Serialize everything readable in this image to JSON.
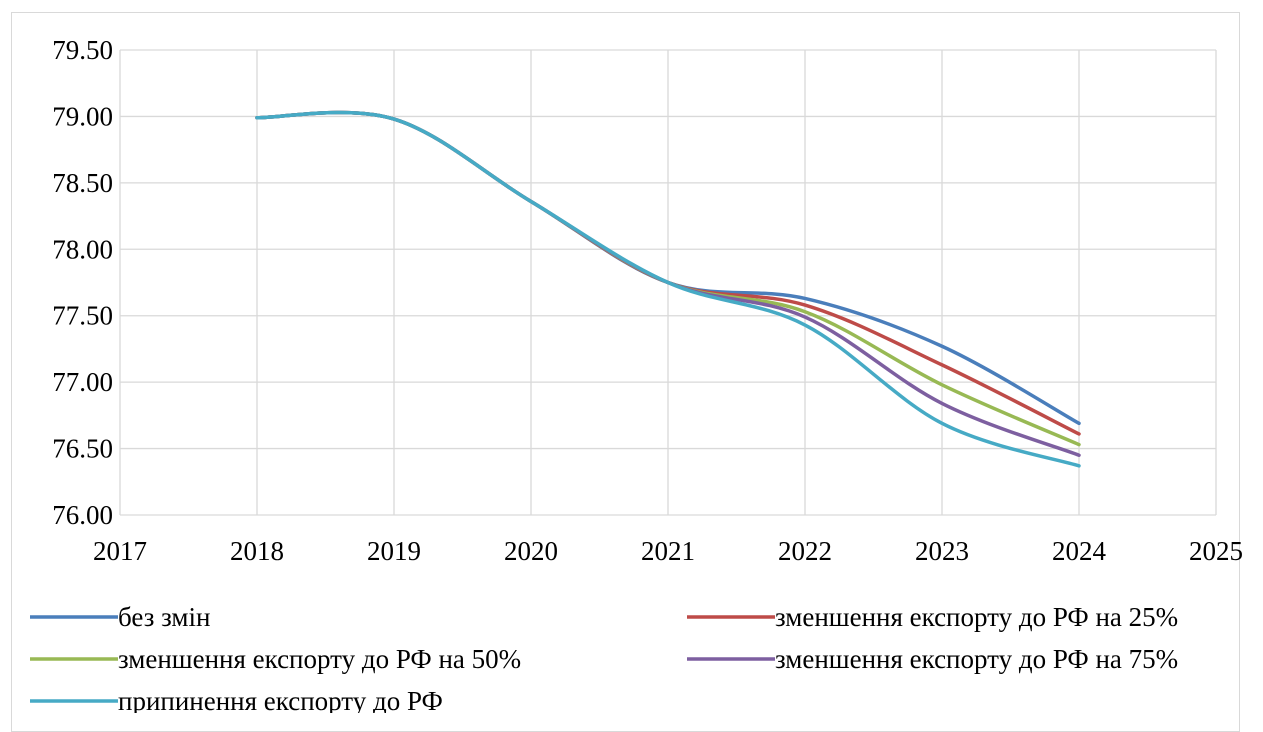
{
  "chart_data": {
    "type": "line",
    "title": "",
    "xlabel": "",
    "ylabel": "",
    "xlim": [
      2017,
      2025
    ],
    "ylim": [
      76.0,
      79.5
    ],
    "x_ticks": [
      "2017",
      "2018",
      "2019",
      "2020",
      "2021",
      "2022",
      "2023",
      "2024",
      "2025"
    ],
    "y_ticks": [
      "76.00",
      "76.50",
      "77.00",
      "77.50",
      "78.00",
      "78.50",
      "79.00",
      "79.50"
    ],
    "grid": true,
    "legend_position": "bottom",
    "x": [
      2018,
      2019,
      2020,
      2021,
      2022,
      2023,
      2024
    ],
    "series": [
      {
        "name": "без змін",
        "color": "#4a7ebb",
        "values": [
          78.99,
          78.98,
          78.36,
          77.75,
          77.63,
          77.27,
          76.69
        ]
      },
      {
        "name": "зменшення експорту до РФ на 25%",
        "color": "#be4b48",
        "values": [
          78.99,
          78.98,
          78.36,
          77.75,
          77.58,
          77.13,
          76.61
        ]
      },
      {
        "name": "зменшення експорту до РФ на 50%",
        "color": "#98b954",
        "values": [
          78.99,
          78.98,
          78.36,
          77.75,
          77.53,
          76.98,
          76.53
        ]
      },
      {
        "name": "зменшення експорту до РФ на 75%",
        "color": "#7d5fa0",
        "values": [
          78.99,
          78.98,
          78.36,
          77.75,
          77.49,
          76.84,
          76.45
        ]
      },
      {
        "name": "припинення експорту до РФ",
        "color": "#46aac5",
        "values": [
          78.99,
          78.98,
          78.36,
          77.75,
          77.43,
          76.69,
          76.37
        ]
      }
    ]
  }
}
